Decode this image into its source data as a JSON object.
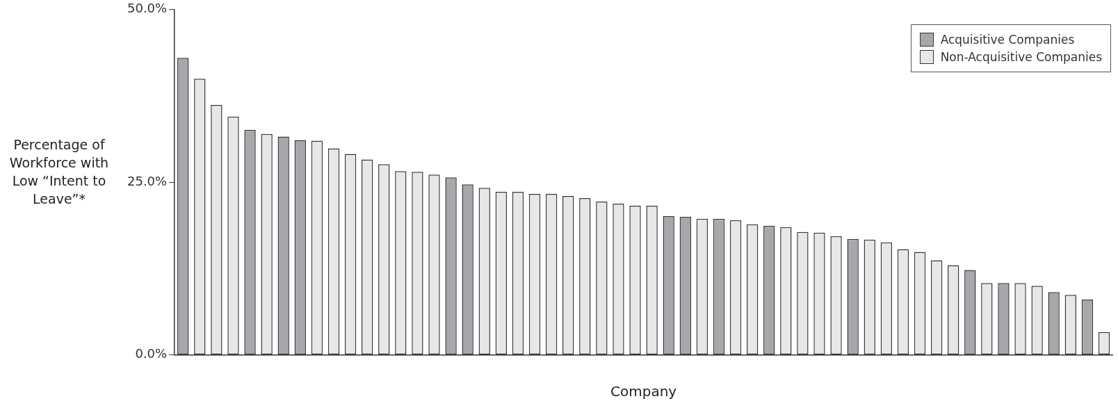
{
  "chart_data": {
    "type": "bar",
    "xlabel": "Company",
    "ylabel": "Percentage of Workforce with Low “Intent to Leave”*",
    "categories": [
      null,
      null,
      null,
      null,
      null,
      null,
      null,
      null,
      null,
      null,
      null,
      null,
      null,
      null,
      null,
      null,
      null,
      null,
      null,
      null,
      null,
      null,
      null,
      null,
      null,
      null,
      null,
      null,
      null,
      null,
      null,
      null,
      null,
      null,
      null,
      null,
      null,
      null,
      null,
      null,
      null,
      null,
      null,
      null,
      null,
      null,
      null,
      null,
      null,
      null,
      null,
      null,
      null,
      null,
      null,
      null
    ],
    "series": [
      {
        "name": "Acquisitive Companies",
        "color": "#a7a8ac",
        "values": [
          43.0,
          null,
          null,
          null,
          32.6,
          null,
          31.6,
          31.1,
          null,
          null,
          null,
          null,
          null,
          null,
          null,
          null,
          25.7,
          24.7,
          null,
          null,
          null,
          null,
          null,
          null,
          null,
          null,
          null,
          null,
          null,
          20.1,
          20.0,
          null,
          19.7,
          null,
          null,
          18.7,
          null,
          null,
          null,
          null,
          16.8,
          null,
          null,
          null,
          null,
          null,
          null,
          12.3,
          null,
          10.4,
          null,
          null,
          9.1,
          null,
          8.0,
          null
        ]
      },
      {
        "name": "Non-Acquisitive Companies",
        "color": "#e6e7e8",
        "values": [
          null,
          40.0,
          36.2,
          34.5,
          null,
          32.0,
          null,
          null,
          31.0,
          29.9,
          29.1,
          28.3,
          27.6,
          26.6,
          26.5,
          26.1,
          null,
          null,
          24.2,
          23.6,
          23.6,
          23.3,
          23.3,
          23.0,
          22.7,
          22.2,
          21.9,
          21.6,
          21.6,
          null,
          null,
          19.7,
          null,
          19.5,
          18.9,
          null,
          18.5,
          17.8,
          17.7,
          17.2,
          null,
          16.7,
          16.3,
          15.3,
          14.9,
          13.7,
          13.0,
          null,
          10.4,
          null,
          10.4,
          10.0,
          null,
          8.7,
          null,
          3.3
        ]
      }
    ],
    "ylim": [
      0,
      50
    ],
    "yticks": [
      {
        "value": 0,
        "label": "0.0%"
      },
      {
        "value": 25,
        "label": "25.0%"
      },
      {
        "value": 50,
        "label": "50.0%"
      }
    ],
    "legend": "top right"
  }
}
